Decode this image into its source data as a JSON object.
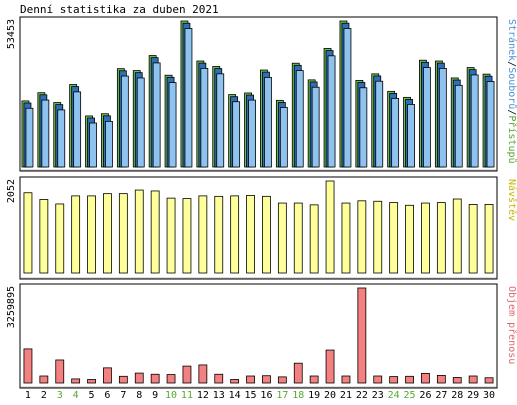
{
  "title": "Denní statistika za duben 2021",
  "chart_data": {
    "type": "bar",
    "categories": [
      "1",
      "2",
      "3",
      "4",
      "5",
      "6",
      "7",
      "8",
      "9",
      "10",
      "11",
      "12",
      "13",
      "14",
      "15",
      "16",
      "17",
      "18",
      "19",
      "20",
      "21",
      "22",
      "23",
      "24",
      "25",
      "26",
      "27",
      "28",
      "29",
      "30"
    ],
    "weekend_categories": [
      "3",
      "4",
      "10",
      "11",
      "17",
      "18",
      "24",
      "25"
    ],
    "panels": [
      {
        "name": "hits",
        "ymax_label": "53453",
        "ymax": 53453,
        "legend": [
          {
            "text": "Stránek",
            "color": "#4a8fd8"
          },
          {
            "text": "/",
            "color": "#000000"
          },
          {
            "text": "Souborů",
            "color": "#4a8fd8"
          },
          {
            "text": "/",
            "color": "#000000"
          },
          {
            "text": "Přístupů",
            "color": "#56a832"
          }
        ],
        "series": [
          {
            "name": "Přístupů",
            "color": "#6bbf4e",
            "values": [
              24200,
              27200,
              23600,
              30200,
              18700,
              19500,
              36000,
              35300,
              40800,
              33600,
              53453,
              38800,
              36800,
              26500,
              27100,
              35500,
              24400,
              38000,
              31900,
              43400,
              53453,
              31700,
              34100,
              27700,
              25500,
              39100,
              38800,
              32600,
              36400,
              34000
            ]
          },
          {
            "name": "Souborů",
            "color": "#2f6fb8",
            "values": [
              23800,
              26800,
              23200,
              29800,
              18300,
              19100,
              35600,
              34900,
              40400,
              33200,
              53000,
              38400,
              36400,
              26100,
              26700,
              35100,
              24000,
              37600,
              31500,
              43000,
              53000,
              31300,
              33700,
              27300,
              25100,
              38700,
              38400,
              32200,
              36000,
              33600
            ]
          },
          {
            "name": "Stránek",
            "color": "#8ec3ef",
            "values": [
              22600,
              25600,
              22000,
              28600,
              17200,
              17800,
              34400,
              33700,
              39200,
              32000,
              51800,
              37200,
              35200,
              25000,
              25600,
              33900,
              22900,
              36400,
              30300,
              41800,
              51800,
              30100,
              32500,
              26200,
              24000,
              37500,
              37200,
              31000,
              34800,
              32400
            ]
          }
        ]
      },
      {
        "name": "visits",
        "ymax_label": "2052",
        "ymax": 2052,
        "legend": [
          {
            "text": "Návštěv",
            "color": "#c8b400"
          }
        ],
        "series": [
          {
            "name": "Návštěv",
            "color": "#ffff99",
            "values": [
              1790,
              1640,
              1540,
              1720,
              1720,
              1770,
              1770,
              1850,
              1830,
              1670,
              1660,
              1720,
              1710,
              1720,
              1730,
              1710,
              1560,
              1560,
              1520,
              2052,
              1560,
              1610,
              1600,
              1570,
              1510,
              1560,
              1570,
              1650,
              1530,
              1530
            ]
          }
        ]
      },
      {
        "name": "traffic",
        "ymax_label": "3259895",
        "ymax": 3259895,
        "legend": [
          {
            "text": "Objem přenosu",
            "color": "#e06a6a"
          }
        ],
        "series": [
          {
            "name": "Objem přenosu",
            "color": "#f48080",
            "values": [
              1170000,
              240000,
              790000,
              140000,
              120000,
              520000,
              230000,
              340000,
              300000,
              290000,
              580000,
              620000,
              300000,
              120000,
              240000,
              250000,
              210000,
              680000,
              240000,
              1130000,
              240000,
              3259895,
              240000,
              220000,
              230000,
              330000,
              260000,
              190000,
              240000,
              180000
            ]
          }
        ]
      }
    ]
  }
}
